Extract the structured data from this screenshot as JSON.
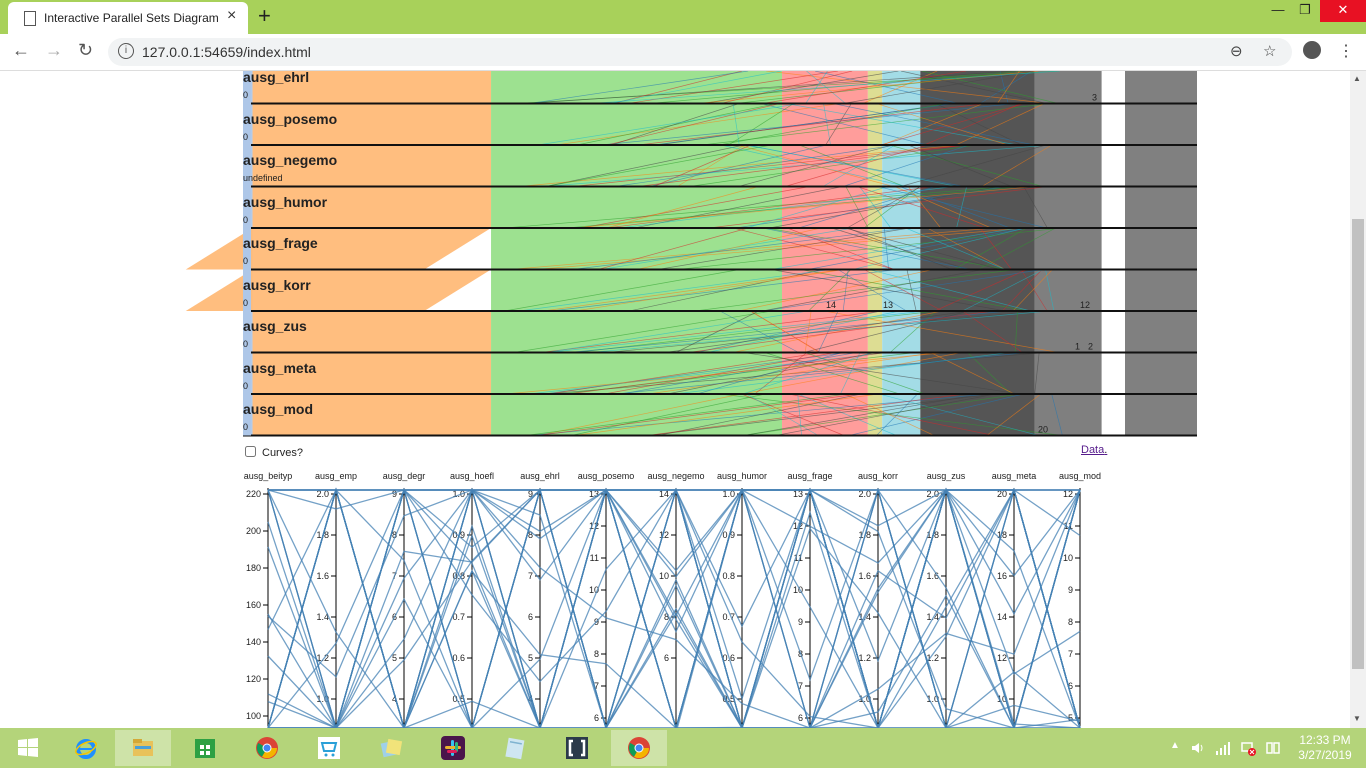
{
  "browser": {
    "tab_title": "Interactive Parallel Sets Diagram",
    "tab_close": "×",
    "new_tab": "+",
    "url": "127.0.0.1:54659/index.html",
    "window_controls": {
      "minimize": "—",
      "restore": "❐",
      "close": "✕"
    }
  },
  "parsets": {
    "dimensions": [
      {
        "name": "ausg_ehrl",
        "sub": "0"
      },
      {
        "name": "ausg_posemo",
        "sub": "0"
      },
      {
        "name": "ausg_negemo",
        "sub": "undefined"
      },
      {
        "name": "ausg_humor",
        "sub": "0"
      },
      {
        "name": "ausg_frage",
        "sub": "0"
      },
      {
        "name": "ausg_korr",
        "sub": "0"
      },
      {
        "name": "ausg_zus",
        "sub": "0"
      },
      {
        "name": "ausg_meta",
        "sub": "0"
      },
      {
        "name": "ausg_mod",
        "sub": "0"
      }
    ],
    "category_labels": [
      {
        "text": "3",
        "row": 0
      },
      {
        "text": "14",
        "row": 5
      },
      {
        "text": "13",
        "row": 5
      },
      {
        "text": "12",
        "row": 5
      },
      {
        "text": "1",
        "row": 6
      },
      {
        "text": "2",
        "row": 6
      },
      {
        "text": "20",
        "row": 8
      }
    ],
    "ribbon_colors": [
      "#ffbb78",
      "#98df8a",
      "#ff9896",
      "#dbdb8d",
      "#9edae5",
      "#555555",
      "#7f7f7f",
      "#aec7e8"
    ],
    "curves_label": "Curves?",
    "data_link": "Data",
    "data_link_suffix": "."
  },
  "parcoords": {
    "line_color": "#4682b4",
    "axes": [
      {
        "name": "ausg_beityp",
        "ticks": [
          "220",
          "200",
          "180",
          "160",
          "140",
          "120",
          "100"
        ]
      },
      {
        "name": "ausg_emp",
        "ticks": [
          "2.0",
          "1.8",
          "1.6",
          "1.4",
          "1.2",
          "1.0"
        ]
      },
      {
        "name": "ausg_degr",
        "ticks": [
          "9",
          "8",
          "7",
          "6",
          "5",
          "4"
        ]
      },
      {
        "name": "ausg_hoefl",
        "ticks": [
          "1.0",
          "0.9",
          "0.8",
          "0.7",
          "0.6",
          "0.5"
        ]
      },
      {
        "name": "ausg_ehrl",
        "ticks": [
          "9",
          "8",
          "7",
          "6",
          "5",
          "4"
        ]
      },
      {
        "name": "ausg_posemo",
        "ticks": [
          "13",
          "12",
          "11",
          "10",
          "9",
          "8",
          "7",
          "6"
        ]
      },
      {
        "name": "ausg_negemo",
        "ticks": [
          "14",
          "12",
          "10",
          "8",
          "6"
        ]
      },
      {
        "name": "ausg_humor",
        "ticks": [
          "1.0",
          "0.9",
          "0.8",
          "0.7",
          "0.6",
          "0.5"
        ]
      },
      {
        "name": "ausg_frage",
        "ticks": [
          "13",
          "12",
          "11",
          "10",
          "9",
          "8",
          "7",
          "6"
        ]
      },
      {
        "name": "ausg_korr",
        "ticks": [
          "2.0",
          "1.8",
          "1.6",
          "1.4",
          "1.2",
          "1.0"
        ]
      },
      {
        "name": "ausg_zus",
        "ticks": [
          "2.0",
          "1.8",
          "1.6",
          "1.4",
          "1.2",
          "1.0"
        ]
      },
      {
        "name": "ausg_meta",
        "ticks": [
          "20",
          "18",
          "16",
          "14",
          "12",
          "10"
        ]
      },
      {
        "name": "ausg_mod",
        "ticks": [
          "12",
          "11",
          "10",
          "9",
          "8",
          "7",
          "6",
          "5"
        ]
      }
    ]
  },
  "taskbar": {
    "items": [
      "start",
      "internet-explorer",
      "file-explorer",
      "store",
      "chrome",
      "shopping",
      "photos",
      "slack",
      "notepad",
      "app-bracket",
      "chrome-active"
    ],
    "time": "12:33 PM",
    "date": "3/27/2019"
  }
}
